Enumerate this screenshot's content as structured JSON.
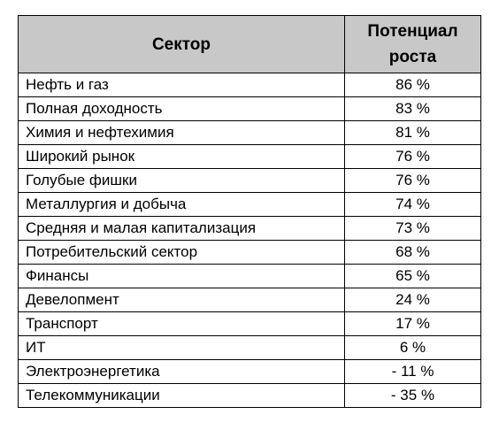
{
  "table": {
    "headers": {
      "sector": "Сектор",
      "potential": "Потенциал роста"
    },
    "rows": [
      {
        "sector": "Нефть и газ",
        "potential": "86 %"
      },
      {
        "sector": "Полная доходность",
        "potential": "83 %"
      },
      {
        "sector": "Химия и нефтехимия",
        "potential": "81 %"
      },
      {
        "sector": "Широкий рынок",
        "potential": "76 %"
      },
      {
        "sector": "Голубые фишки",
        "potential": "76 %"
      },
      {
        "sector": "Металлургия и добыча",
        "potential": "74 %"
      },
      {
        "sector": "Средняя и малая капитализация",
        "potential": "73 %"
      },
      {
        "sector": "Потребительский сектор",
        "potential": "68 %"
      },
      {
        "sector": "Финансы",
        "potential": "65 %"
      },
      {
        "sector": "Девелопмент",
        "potential": "24 %"
      },
      {
        "sector": "Транспорт",
        "potential": "17 %"
      },
      {
        "sector": "ИТ",
        "potential": "6 %"
      },
      {
        "sector": "Электроэнергетика",
        "potential": "- 11 %"
      },
      {
        "sector": "Телекоммуникации",
        "potential": "- 35 %"
      }
    ],
    "colors": {
      "header_bg": "#c8c8c8",
      "border": "#000000",
      "text": "#000000"
    }
  }
}
